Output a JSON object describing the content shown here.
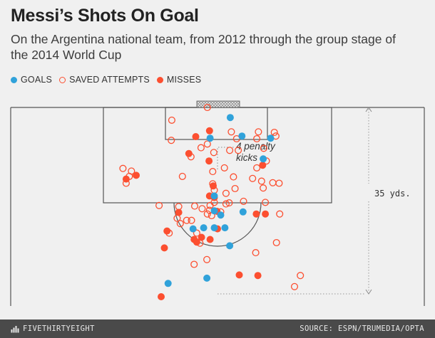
{
  "title": "Messi’s Shots On Goal",
  "subtitle": "On the Argentina national team, from 2012 through the group stage of the 2014 World Cup",
  "legend": {
    "goals": "GOALS",
    "saved": "SAVED ATTEMPTS",
    "misses": "MISSES"
  },
  "colors": {
    "goal": "#30a2da",
    "miss": "#fc4f30",
    "lines": "#555555",
    "background": "#f0f0f0"
  },
  "annotations": {
    "penalty_line1": "4 penalty",
    "penalty_line2": "kicks",
    "distance": "35 yds."
  },
  "footer": {
    "brand": "FIVETHIRTYEIGHT",
    "source": "SOURCE: ESPN/TRUMEDIA/OPTA"
  },
  "chart_data": {
    "type": "scatter",
    "title": "Messi’s Shots On Goal",
    "xlabel": "",
    "ylabel": "",
    "legend_position": "top-left",
    "series": [
      {
        "name": "GOALS",
        "points": [
          [
            -9.3,
            33.2
          ],
          [
            -2.0,
            32.2
          ],
          [
            2.3,
            26.1
          ],
          [
            -2.6,
            22.7
          ],
          [
            -0.6,
            22.7
          ],
          [
            1.4,
            22.7
          ],
          [
            -4.6,
            22.9
          ],
          [
            0.6,
            20.3
          ],
          [
            -0.6,
            19.5
          ],
          [
            4.8,
            19.7
          ],
          [
            -0.6,
            16.7
          ],
          [
            8.6,
            9.7
          ],
          [
            -1.4,
            5.8
          ],
          [
            10.0,
            5.8
          ],
          [
            4.6,
            5.4
          ],
          [
            2.4,
            1.9
          ]
        ]
      },
      {
        "name": "SAVED ATTEMPTS",
        "points": [
          [
            14.5,
            33.8
          ],
          [
            15.6,
            31.7
          ],
          [
            -4.4,
            29.6
          ],
          [
            -2.0,
            28.7
          ],
          [
            7.2,
            27.4
          ],
          [
            -3.3,
            25.6
          ],
          [
            11.1,
            25.5
          ],
          [
            -9.1,
            23.7
          ],
          [
            -3.9,
            23.7
          ],
          [
            -7.0,
            21.9
          ],
          [
            -7.6,
            20.9
          ],
          [
            -5.8,
            21.3
          ],
          [
            -4.9,
            21.3
          ],
          [
            -1.9,
            20.1
          ],
          [
            -1.1,
            20.4
          ],
          [
            -1.5,
            19.4
          ],
          [
            0.6,
            19.7
          ],
          [
            11.7,
            20.1
          ],
          [
            -11.0,
            18.5
          ],
          [
            -7.3,
            18.7
          ],
          [
            -4.3,
            18.6
          ],
          [
            -2.9,
            19.1
          ],
          [
            -1.4,
            18.5
          ],
          [
            -0.6,
            17.9
          ],
          [
            1.6,
            18.2
          ],
          [
            2.2,
            18.0
          ],
          [
            9.0,
            17.9
          ],
          [
            4.9,
            17.7
          ],
          [
            1.6,
            16.2
          ],
          [
            -0.6,
            15.6
          ],
          [
            3.3,
            15.3
          ],
          [
            8.6,
            15.2
          ],
          [
            -17.2,
            14.3
          ],
          [
            -16.6,
            13.0
          ],
          [
            -16.2,
            12.0
          ],
          [
            -17.8,
            11.5
          ],
          [
            -6.6,
            13.0
          ],
          [
            -0.9,
            14.4
          ],
          [
            3.0,
            13.1
          ],
          [
            6.6,
            13.4
          ],
          [
            8.3,
            13.9
          ],
          [
            10.4,
            14.2
          ],
          [
            11.6,
            14.3
          ],
          [
            -0.9,
            12.1
          ],
          [
            1.3,
            11.4
          ],
          [
            7.4,
            11.4
          ],
          [
            9.2,
            10.1
          ],
          [
            -5.0,
            9.3
          ],
          [
            -0.7,
            8.5
          ],
          [
            2.3,
            8.1
          ],
          [
            3.9,
            8.1
          ],
          [
            8.7,
            7.7
          ],
          [
            -3.1,
            7.6
          ],
          [
            -8.7,
            6.2
          ],
          [
            -1.9,
            6.9
          ],
          [
            3.6,
            5.9
          ],
          [
            7.4,
            5.9
          ],
          [
            11.0,
            5.4
          ],
          [
            10.7,
            4.7
          ],
          [
            2.6,
            4.6
          ],
          [
            7.7,
            4.6
          ],
          [
            -8.6,
            2.4
          ],
          [
            -1.9,
            0.0
          ]
        ]
      },
      {
        "name": "MISSES",
        "points": [
          [
            -10.6,
            35.7
          ],
          [
            4.1,
            31.6
          ],
          [
            7.6,
            31.7
          ],
          [
            -10.0,
            26.5
          ],
          [
            -3.9,
            25.4
          ],
          [
            -1.4,
            24.9
          ],
          [
            -3.0,
            24.5
          ],
          [
            -4.4,
            24.9
          ],
          [
            -9.5,
            23.3
          ],
          [
            0.0,
            22.9
          ],
          [
            -7.3,
            19.8
          ],
          [
            -0.1,
            19.6
          ],
          [
            7.3,
            20.1
          ],
          [
            9.0,
            20.1
          ],
          [
            -0.6,
            17.0
          ],
          [
            -1.5,
            16.7
          ],
          [
            -0.8,
            14.8
          ],
          [
            -17.2,
            13.5
          ],
          [
            -15.3,
            12.8
          ],
          [
            8.5,
            10.9
          ],
          [
            -1.6,
            10.1
          ],
          [
            -5.4,
            8.7
          ],
          [
            -4.1,
            5.5
          ],
          [
            -1.5,
            4.4
          ]
        ]
      }
    ]
  }
}
